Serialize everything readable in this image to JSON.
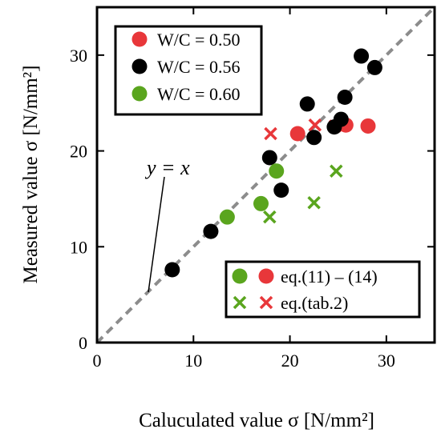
{
  "chart_data": {
    "type": "scatter",
    "title": "",
    "xlabel": "Caluculated value σ [N/mm²]",
    "ylabel": "Measured value σ [N/mm²]",
    "xlim": [
      0,
      35
    ],
    "ylim": [
      0,
      35
    ],
    "xticks": [
      "0",
      "10",
      "20",
      "30"
    ],
    "yticks": [
      "0",
      "10",
      "20",
      "30"
    ],
    "grid": false,
    "reference_line": {
      "label": "y = x",
      "style": "dashed",
      "color": "#8c8c8c"
    },
    "colors": {
      "wc050": "#e8373a",
      "wc056": "#000000",
      "wc060": "#5aa51e"
    },
    "legend_mix": {
      "position": "top-left",
      "entries": [
        "W/C = 0.50",
        "W/C = 0.56",
        "W/C = 0.60"
      ]
    },
    "legend_method": {
      "position": "bottom-right",
      "entries": [
        "eq.(11) – (14)",
        "eq.(tab.2)"
      ]
    },
    "series": [
      {
        "name": "W/C = 0.50",
        "method": "eq.(11) – (14)",
        "marker": "circle",
        "color_key": "wc050",
        "points": [
          [
            20.8,
            21.8
          ],
          [
            25.8,
            22.7
          ],
          [
            28.1,
            22.6
          ]
        ]
      },
      {
        "name": "W/C = 0.50",
        "method": "eq.(tab.2)",
        "marker": "x",
        "color_key": "wc050",
        "points": [
          [
            18.0,
            21.8
          ],
          [
            22.6,
            22.7
          ],
          [
            24.7,
            22.6
          ]
        ]
      },
      {
        "name": "W/C = 0.56",
        "method": "eq.(11) – (14)",
        "marker": "circle",
        "color_key": "wc056",
        "points": [
          [
            7.8,
            7.6
          ],
          [
            11.8,
            11.6
          ],
          [
            17.9,
            19.3
          ],
          [
            19.1,
            15.9
          ],
          [
            21.8,
            24.9
          ],
          [
            22.5,
            21.4
          ],
          [
            24.6,
            22.5
          ],
          [
            25.3,
            23.3
          ],
          [
            25.7,
            25.6
          ],
          [
            27.4,
            29.9
          ],
          [
            28.8,
            28.7
          ]
        ]
      },
      {
        "name": "W/C = 0.60",
        "method": "eq.(11) – (14)",
        "marker": "circle",
        "color_key": "wc060",
        "points": [
          [
            13.5,
            13.1
          ],
          [
            17.0,
            14.5
          ],
          [
            18.6,
            17.9
          ]
        ]
      },
      {
        "name": "W/C = 0.60",
        "method": "eq.(tab.2)",
        "marker": "x",
        "color_key": "wc060",
        "points": [
          [
            17.9,
            13.1
          ],
          [
            22.5,
            14.6
          ],
          [
            24.8,
            17.9
          ]
        ]
      }
    ]
  }
}
